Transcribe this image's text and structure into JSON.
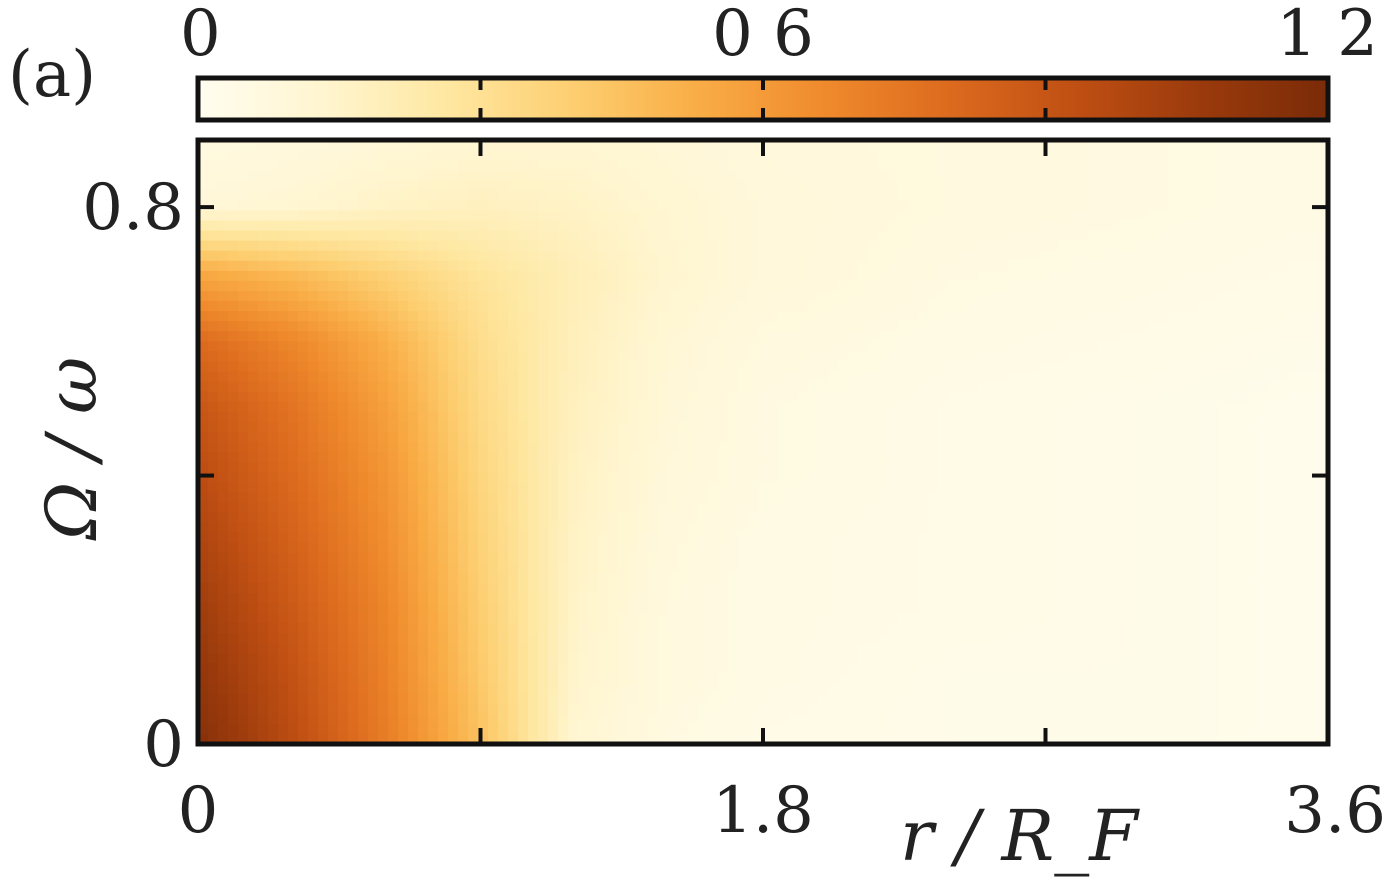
{
  "chart_data": {
    "type": "heatmap",
    "panel_label": "(a)",
    "xlabel": "r / R_F",
    "ylabel": "Ω / ω",
    "x_ticks": [
      {
        "value": 0,
        "label": "0"
      },
      {
        "value": 1.8,
        "label": "1.8"
      },
      {
        "value": 3.6,
        "label": "3.6"
      }
    ],
    "y_ticks": [
      {
        "value": 0,
        "label": "0"
      },
      {
        "value": 0.8,
        "label": "0.8"
      }
    ],
    "xlim": [
      0,
      3.6
    ],
    "ylim": [
      0,
      0.9
    ],
    "colorbar": {
      "orientation": "horizontal",
      "placement": "top",
      "range": [
        0,
        1.2
      ],
      "ticks": [
        {
          "value": 0,
          "label": "0"
        },
        {
          "value": 0.6,
          "label": "0 6"
        },
        {
          "value": 1.2,
          "label": "1 2"
        }
      ],
      "colors": [
        "#fffdf0",
        "#fff5cf",
        "#fee7a0",
        "#fdce70",
        "#f9ac45",
        "#ef8a2c",
        "#dc6a1e",
        "#bf4f13",
        "#9a3a0c",
        "#7a2b08"
      ]
    },
    "grid": false,
    "data_description_values": {
      "x": [
        0,
        0.3,
        0.6,
        0.9,
        1.2,
        1.5,
        1.8,
        2.4,
        3.0,
        3.5
      ],
      "y": [
        0,
        0.1,
        0.2,
        0.3,
        0.4,
        0.5,
        0.6,
        0.7,
        0.8,
        0.9
      ],
      "z": [
        [
          1.15,
          0.95,
          0.72,
          0.45,
          0.12,
          0.06,
          0.04,
          0.03,
          0.03,
          0.02
        ],
        [
          1.1,
          0.92,
          0.7,
          0.42,
          0.14,
          0.07,
          0.05,
          0.03,
          0.03,
          0.02
        ],
        [
          1.05,
          0.88,
          0.68,
          0.4,
          0.15,
          0.07,
          0.05,
          0.04,
          0.03,
          0.02
        ],
        [
          1.0,
          0.84,
          0.65,
          0.38,
          0.16,
          0.08,
          0.05,
          0.04,
          0.03,
          0.02
        ],
        [
          0.95,
          0.8,
          0.62,
          0.36,
          0.17,
          0.09,
          0.06,
          0.04,
          0.03,
          0.02
        ],
        [
          0.9,
          0.76,
          0.58,
          0.34,
          0.18,
          0.1,
          0.06,
          0.04,
          0.03,
          0.02
        ],
        [
          0.8,
          0.68,
          0.52,
          0.32,
          0.19,
          0.11,
          0.07,
          0.05,
          0.04,
          0.03
        ],
        [
          0.55,
          0.48,
          0.38,
          0.28,
          0.2,
          0.13,
          0.09,
          0.06,
          0.05,
          0.04
        ],
        [
          0.1,
          0.12,
          0.16,
          0.18,
          0.16,
          0.12,
          0.09,
          0.07,
          0.06,
          0.05
        ],
        [
          0.06,
          0.08,
          0.1,
          0.12,
          0.12,
          0.1,
          0.08,
          0.07,
          0.06,
          0.05
        ]
      ]
    }
  }
}
